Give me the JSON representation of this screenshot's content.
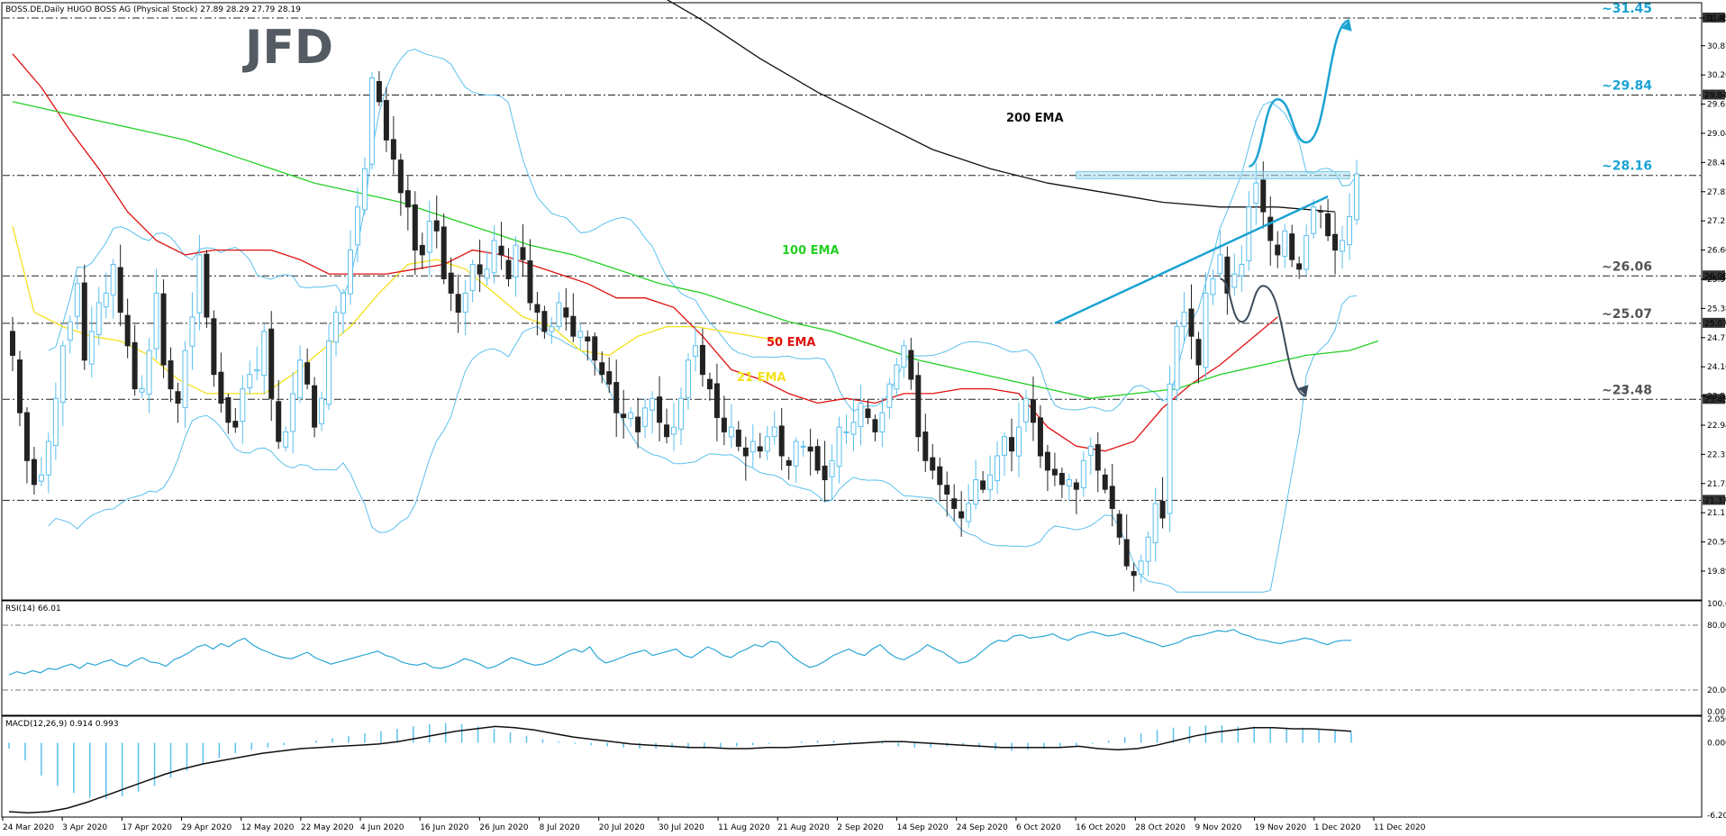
{
  "header": {
    "main": "BOSS.DE,Daily  HUGO BOSS AG (Physical Stock)  27.89 28.29 27.79 28.19",
    "rsi": "RSI(14) 66.01",
    "macd": "MACD(12,26,9) 0.914 0.993"
  },
  "logo": "JFD",
  "colors": {
    "bull_fill": "#ffffff",
    "bull_stroke": "#5bc0ee",
    "bear": "#222222",
    "ema21": "#f4e11a",
    "ema50": "#e01010",
    "ema100": "#22d022",
    "ema200": "#111111",
    "bollinger": "#5bc0ee",
    "projection_up": "#1ba3d3",
    "projection_down": "#3a4a5a",
    "trendline": "#1ba3d3",
    "level_label_blue": "#1ba3d3",
    "level_label_gray": "#555555"
  },
  "chart_data": [
    {
      "type": "candlestick",
      "pane": "price",
      "ylim": [
        19.4,
        31.6
      ],
      "y_ticks": [
        "31.45",
        "30.87",
        "30.26",
        "29.65",
        "29.04",
        "28.43",
        "27.82",
        "27.21",
        "26.60",
        "25.99",
        "25.38",
        "24.77",
        "24.16",
        "23.55",
        "22.94",
        "22.33",
        "21.72",
        "21.11",
        "20.50",
        "19.89"
      ],
      "x_labels": [
        "24 Mar 2020",
        "3 Apr 2020",
        "17 Apr 2020",
        "29 Apr 2020",
        "12 May 2020",
        "22 May 2020",
        "4 Jun 2020",
        "16 Jun 2020",
        "26 Jun 2020",
        "8 Jul 2020",
        "20 Jul 2020",
        "30 Jul 2020",
        "11 Aug 2020",
        "21 Aug 2020",
        "2 Sep 2020",
        "14 Sep 2020",
        "24 Sep 2020",
        "6 Oct 2020",
        "16 Oct 2020",
        "28 Oct 2020",
        "9 Nov 2020",
        "19 Nov 2020",
        "1 Dec 2020",
        "11 Dec 2020"
      ],
      "levels": [
        {
          "value": 31.45,
          "label": "~31.45",
          "axis_tag": "31.45",
          "style": "blue"
        },
        {
          "value": 29.84,
          "label": "~29.84",
          "axis_tag": "29.84",
          "style": "blue"
        },
        {
          "value": 28.16,
          "label": "~28.16",
          "axis_tag": "",
          "style": "blue"
        },
        {
          "value": 26.06,
          "label": "~26.06",
          "axis_tag": "26.06",
          "style": "gray"
        },
        {
          "value": 25.07,
          "label": "~25.07",
          "axis_tag": "25.07",
          "style": "gray"
        },
        {
          "value": 23.48,
          "label": "~23.48",
          "axis_tag": "23.48",
          "style": "gray"
        },
        {
          "value": 21.37,
          "label": "",
          "axis_tag": "21.37",
          "style": "gray"
        }
      ],
      "ema_labels": [
        {
          "name": "200 EMA",
          "ema": "ema200"
        },
        {
          "name": "100 EMA",
          "ema": "ema100"
        },
        {
          "name": "50 EMA",
          "ema": "ema50"
        },
        {
          "name": "21 EMA",
          "ema": "ema21"
        }
      ],
      "resistance_zone": [
        28.09,
        28.24
      ],
      "uptrend_line": {
        "from_bar": 145,
        "from_y": 25.07,
        "to_bar": 183,
        "to_y": 27.72
      },
      "scenario_up": [
        {
          "bar": 172,
          "y": 28.35
        },
        {
          "bar": 176,
          "y": 29.75
        },
        {
          "bar": 180,
          "y": 28.85
        },
        {
          "bar": 186,
          "y": 31.4
        }
      ],
      "scenario_down": [
        {
          "bar": 168,
          "y": 26.0
        },
        {
          "bar": 171,
          "y": 25.1
        },
        {
          "bar": 174,
          "y": 25.85
        },
        {
          "bar": 180,
          "y": 23.55
        }
      ],
      "candles": {
        "closes": [
          24.4,
          23.2,
          22.2,
          21.7,
          21.9,
          22.6,
          23.5,
          24.6,
          25.1,
          25.9,
          24.3,
          24.9,
          25.5,
          25.7,
          26.3,
          25.3,
          24.6,
          23.7,
          23.7,
          24.5,
          25.7,
          24.2,
          23.7,
          23.4,
          24.5,
          25.2,
          26.5,
          25.2,
          24.0,
          23.4,
          23.0,
          22.9,
          23.7,
          24.0,
          24.1,
          24.9,
          23.5,
          22.6,
          22.8,
          23.6,
          24.3,
          23.8,
          22.9,
          23.5,
          24.7,
          25.3,
          25.7,
          26.6,
          27.5,
          28.3,
          30.2,
          29.7,
          28.9,
          28.5,
          27.8,
          27.5,
          26.6,
          26.5,
          27.2,
          27.0,
          26.0,
          25.7,
          25.3,
          25.7,
          26.3,
          26.1,
          26.2,
          26.8,
          26.5,
          26.0,
          26.7,
          26.4,
          25.5,
          25.3,
          24.9,
          25.0,
          25.5,
          25.2,
          24.8,
          24.9,
          24.7,
          24.3,
          24.0,
          23.8,
          23.2,
          23.1,
          23.2,
          22.8,
          23.3,
          23.5,
          23.0,
          22.7,
          22.9,
          23.5,
          24.3,
          24.6,
          24.0,
          23.7,
          23.1,
          22.8,
          22.9,
          22.5,
          22.3,
          22.6,
          22.4,
          22.7,
          22.9,
          22.3,
          22.1,
          22.6,
          22.5,
          22.4,
          22.0,
          21.8,
          22.2,
          22.9,
          22.8,
          23.0,
          23.4,
          23.1,
          22.8,
          23.2,
          23.8,
          24.2,
          24.6,
          23.9,
          22.7,
          22.2,
          22.0,
          21.7,
          21.5,
          21.2,
          21.0,
          21.3,
          21.8,
          21.6,
          21.9,
          22.3,
          22.7,
          22.4,
          22.9,
          23.5,
          23.0,
          22.3,
          22.0,
          21.9,
          21.7,
          21.8,
          21.6,
          22.2,
          22.5,
          22.0,
          21.6,
          21.2,
          20.6,
          20.0,
          19.8,
          20.1,
          20.6,
          21.3,
          21.0,
          23.8,
          25.0,
          25.3,
          24.8,
          24.2,
          25.7,
          26.0,
          26.5,
          25.7,
          26.1,
          26.3,
          27.5,
          28.0,
          27.4,
          26.8,
          26.5,
          27.0,
          26.4,
          26.2,
          26.9,
          27.5,
          27.4,
          26.9,
          26.6,
          26.8,
          27.3,
          28.19
        ]
      },
      "ema": {
        "ema21": [
          27.1,
          25.3,
          25.0,
          24.8,
          24.7,
          24.4,
          23.9,
          23.6,
          23.6,
          23.6,
          24.0,
          24.5,
          25.0,
          25.7,
          26.3,
          26.4,
          26.2,
          25.7,
          25.2,
          25.0,
          24.5,
          24.4,
          24.8,
          25.0,
          25.0,
          24.9,
          24.8,
          24.7
        ],
        "ema50": [
          30.7,
          30.0,
          29.1,
          28.3,
          27.4,
          26.8,
          26.5,
          26.6,
          26.6,
          26.6,
          26.4,
          26.1,
          26.1,
          26.1,
          26.2,
          26.3,
          26.6,
          26.5,
          26.3,
          26.1,
          25.9,
          25.6,
          25.6,
          25.4,
          24.8,
          24.1,
          23.9,
          23.6,
          23.4,
          23.5,
          23.4,
          23.6,
          23.6,
          23.7,
          23.7,
          23.6,
          22.9,
          22.5,
          22.4,
          22.6,
          23.3,
          23.8,
          24.2,
          24.7,
          25.2
        ],
        "ema100": [
          29.7,
          29.5,
          29.3,
          29.1,
          28.9,
          28.6,
          28.3,
          28.0,
          27.8,
          27.6,
          27.3,
          27.0,
          26.7,
          26.5,
          26.2,
          25.9,
          25.7,
          25.4,
          25.1,
          24.9,
          24.6,
          24.3,
          24.1,
          23.9,
          23.7,
          23.5,
          23.6,
          23.7,
          24.0,
          24.2,
          24.4,
          24.5,
          24.7
        ],
        "ema200": [
          33.6,
          32.9,
          32.1,
          31.4,
          30.6,
          29.9,
          29.3,
          28.7,
          28.3,
          28.0,
          27.8,
          27.6,
          27.5,
          27.5,
          27.4
        ]
      },
      "ema_anchor_bars": {
        "ema21": [
          0,
          3,
          7,
          11,
          15,
          19,
          23,
          27,
          31,
          35,
          39,
          43,
          47,
          51,
          55,
          59,
          63,
          67,
          71,
          75,
          79,
          83,
          87,
          91,
          95,
          99,
          103,
          107
        ],
        "ema50": [
          0,
          4,
          8,
          12,
          16,
          20,
          24,
          28,
          32,
          36,
          40,
          44,
          48,
          52,
          56,
          60,
          64,
          68,
          72,
          76,
          80,
          84,
          88,
          92,
          96,
          100,
          104,
          108,
          112,
          116,
          120,
          124,
          128,
          132,
          136,
          140,
          144,
          148,
          152,
          156,
          160,
          164,
          168,
          172,
          176
        ],
        "ema100": [
          0,
          6,
          12,
          18,
          24,
          30,
          36,
          42,
          48,
          54,
          60,
          66,
          72,
          78,
          84,
          90,
          96,
          102,
          108,
          114,
          120,
          126,
          132,
          138,
          144,
          150,
          156,
          162,
          168,
          174,
          180,
          186,
          190
        ],
        "ema200": [
          72,
          80,
          88,
          96,
          104,
          112,
          120,
          128,
          136,
          144,
          152,
          160,
          168,
          176,
          184
        ]
      }
    },
    {
      "type": "line",
      "pane": "rsi",
      "name": "RSI(14)",
      "ylim": [
        0,
        100
      ],
      "y_ticks": [
        "100.00",
        "80.00",
        "20.00",
        "0.00"
      ],
      "reference_levels": [
        80,
        20
      ],
      "values": [
        34,
        37,
        35,
        38,
        36,
        40,
        39,
        42,
        44,
        40,
        45,
        43,
        46,
        48,
        44,
        42,
        47,
        50,
        46,
        45,
        42,
        48,
        51,
        55,
        60,
        62,
        58,
        63,
        60,
        65,
        68,
        62,
        58,
        55,
        52,
        50,
        49,
        52,
        55,
        50,
        47,
        44,
        46,
        48,
        50,
        52,
        54,
        56,
        52,
        50,
        46,
        44,
        43,
        45,
        41,
        40,
        42,
        45,
        49,
        47,
        44,
        40,
        42,
        46,
        50,
        48,
        45,
        43,
        44,
        47,
        51,
        55,
        58,
        55,
        60,
        50,
        45,
        47,
        50,
        53,
        55,
        57,
        52,
        54,
        56,
        58,
        52,
        50,
        55,
        60,
        57,
        52,
        50,
        55,
        58,
        62,
        60,
        65,
        64,
        57,
        50,
        45,
        41,
        43,
        47,
        52,
        55,
        58,
        54,
        52,
        58,
        62,
        55,
        50,
        48,
        52,
        56,
        62,
        58,
        55,
        50,
        45,
        46,
        50,
        56,
        62,
        66,
        65,
        70,
        71,
        68,
        69,
        70,
        72,
        68,
        66,
        70,
        72,
        74,
        72,
        70,
        71,
        73,
        70,
        68,
        65,
        63,
        60,
        62,
        64,
        68,
        70,
        71,
        73,
        75,
        74,
        76,
        72,
        70,
        67,
        66,
        64,
        63,
        65,
        66,
        68,
        67,
        64,
        62,
        65,
        66,
        66.01
      ]
    },
    {
      "type": "bar+line",
      "pane": "macd",
      "name": "MACD(12,26,9)",
      "ylim": [
        -6.208,
        2.05
      ],
      "y_ticks": [
        "2.050",
        "0.000",
        "-6.208"
      ],
      "histogram": [
        -0.5,
        -1.5,
        -2.8,
        -3.7,
        -4.3,
        -4.7,
        -4.8,
        -4.6,
        -4.2,
        -3.7,
        -3.0,
        -2.4,
        -1.8,
        -1.3,
        -0.9,
        -0.6,
        -0.4,
        -0.2,
        0.0,
        0.2,
        0.4,
        0.6,
        0.8,
        1.0,
        1.2,
        1.4,
        1.6,
        1.7,
        1.6,
        1.4,
        1.2,
        0.9,
        0.6,
        0.3,
        0.1,
        -0.1,
        -0.2,
        -0.3,
        -0.4,
        -0.5,
        -0.5,
        -0.4,
        -0.5,
        -0.5,
        -0.4,
        -0.3,
        -0.2,
        -0.1,
        0.0,
        0.1,
        0.2,
        0.2,
        0.1,
        0.0,
        -0.1,
        -0.3,
        -0.4,
        -0.4,
        -0.3,
        -0.2,
        -0.4,
        -0.6,
        -0.7,
        -0.6,
        -0.5,
        -0.4,
        -0.3,
        -0.1,
        0.2,
        0.5,
        0.8,
        1.1,
        1.3,
        1.4,
        1.5,
        1.5,
        1.4,
        1.4,
        1.3,
        1.3,
        1.3,
        1.2,
        1.1,
        0.914
      ],
      "signal": [
        -5.9,
        -6.0,
        -5.9,
        -5.6,
        -5.1,
        -4.5,
        -3.9,
        -3.3,
        -2.7,
        -2.2,
        -1.8,
        -1.5,
        -1.2,
        -0.9,
        -0.7,
        -0.5,
        -0.4,
        -0.3,
        -0.2,
        -0.1,
        0.1,
        0.4,
        0.7,
        1.0,
        1.2,
        1.4,
        1.3,
        1.1,
        0.8,
        0.5,
        0.3,
        0.1,
        -0.1,
        -0.2,
        -0.3,
        -0.4,
        -0.4,
        -0.5,
        -0.5,
        -0.4,
        -0.4,
        -0.3,
        -0.2,
        -0.1,
        0.0,
        0.1,
        0.1,
        0.0,
        -0.1,
        -0.2,
        -0.3,
        -0.4,
        -0.4,
        -0.4,
        -0.4,
        -0.3,
        -0.5,
        -0.6,
        -0.5,
        -0.2,
        0.2,
        0.6,
        0.9,
        1.1,
        1.3,
        1.3,
        1.2,
        1.2,
        1.1,
        0.993
      ]
    }
  ]
}
